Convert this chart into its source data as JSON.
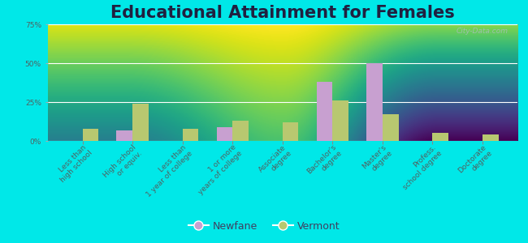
{
  "title": "Educational Attainment for Females",
  "categories": [
    "Less than\nhigh school",
    "High school\nor equiv.",
    "Less than\n1 year of college",
    "1 or more\nyears of college",
    "Associate\ndegree",
    "Bachelor's\ndegree",
    "Master's\ndegree",
    "Profess.\nschool degree",
    "Doctorate\ndegree"
  ],
  "newfane_values": [
    0,
    7,
    0,
    9,
    0,
    38,
    50,
    0,
    0
  ],
  "vermont_values": [
    8,
    24,
    8,
    13,
    12,
    26,
    17,
    5,
    4
  ],
  "newfane_color": "#c8a0d0",
  "vermont_color": "#b8c870",
  "background_outer": "#00e8e8",
  "background_plot_top": "#f5f8ee",
  "background_plot_bottom": "#d8e8c0",
  "ylim": [
    0,
    75
  ],
  "yticks": [
    0,
    25,
    50,
    75
  ],
  "ytick_labels": [
    "0%",
    "25%",
    "50%",
    "75%"
  ],
  "legend_newfane": "Newfane",
  "legend_vermont": "Vermont",
  "title_fontsize": 15,
  "tick_fontsize": 6.5,
  "legend_fontsize": 9,
  "watermark": "City-Data.com"
}
